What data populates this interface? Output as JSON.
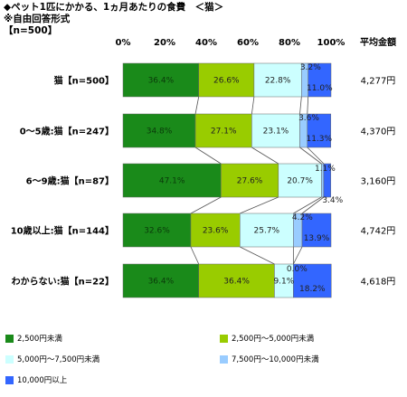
{
  "title": "◆ペット1匹にかかる、1ヵ月あたりの食費　＜猫＞",
  "subtitle": "※自由回答形式",
  "sample": "【n=500】",
  "avg_header": "平均金額",
  "chart_data": {
    "type": "bar",
    "orientation": "horizontal",
    "stacked": true,
    "percent_stacked": true,
    "xlim": [
      0,
      100
    ],
    "ticks": [
      "0%",
      "20%",
      "40%",
      "60%",
      "80%",
      "100%"
    ],
    "categories": [
      "猫【n=500】",
      "0～5歳:猫【n=247】",
      "6～9歳:猫【n=87】",
      "10歳以上:猫【n=144】",
      "わからない:猫【n=22】"
    ],
    "series": [
      {
        "name": "2,500円未満",
        "color": "#1a8a1a",
        "values": [
          36.4,
          34.8,
          47.1,
          32.6,
          36.4
        ],
        "labels": [
          "36.4%",
          "34.8%",
          "47.1%",
          "32.6%",
          "36.4%"
        ]
      },
      {
        "name": "2,500円～5,000円未満",
        "color": "#99cc00",
        "values": [
          26.6,
          27.1,
          27.6,
          23.6,
          36.4
        ],
        "labels": [
          "26.6%",
          "27.1%",
          "27.6%",
          "23.6%",
          "36.4%"
        ]
      },
      {
        "name": "5,000円～7,500円未満",
        "color": "#ccffff",
        "values": [
          22.8,
          23.1,
          20.7,
          25.7,
          9.1
        ],
        "labels": [
          "22.8%",
          "23.1%",
          "20.7%",
          "25.7%",
          "9.1%"
        ]
      },
      {
        "name": "7,500円～10,000円未満",
        "color": "#99ccff",
        "values": [
          3.2,
          3.6,
          1.1,
          4.2,
          0.0
        ],
        "labels": [
          "3.2%",
          "3.6%",
          "1.1%",
          "4.2%",
          "0.0%"
        ]
      },
      {
        "name": "10,000円以上",
        "color": "#3366ff",
        "values": [
          11.0,
          11.3,
          3.4,
          13.9,
          18.2
        ],
        "labels": [
          "11.0%",
          "11.3%",
          "3.4%",
          "13.9%",
          "18.2%"
        ]
      }
    ],
    "averages": [
      "4,277円",
      "4,370円",
      "3,160円",
      "4,742円",
      "4,618円"
    ],
    "grid": false,
    "legend_position": "bottom"
  }
}
